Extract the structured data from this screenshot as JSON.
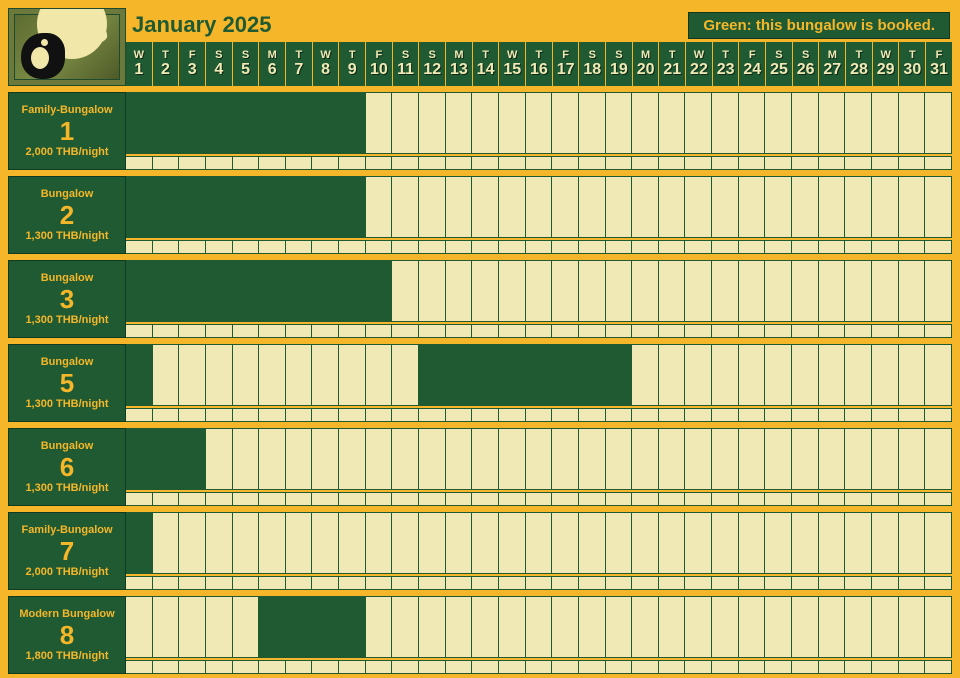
{
  "colors": {
    "page_bg": "#f5b729",
    "dark_green": "#1f5a33",
    "cell_cream": "#f1e9b5",
    "label_text": "#f5b729",
    "title_text": "#1f5a33",
    "border": "#1f5a33"
  },
  "header": {
    "title": "January 2025",
    "legend": "Green: this bungalow is booked."
  },
  "calendar": {
    "days": 31,
    "start_dow_index": 2,
    "dow_labels": [
      "M",
      "T",
      "W",
      "T",
      "F",
      "S",
      "S"
    ],
    "day_numbers": [
      1,
      2,
      3,
      4,
      5,
      6,
      7,
      8,
      9,
      10,
      11,
      12,
      13,
      14,
      15,
      16,
      17,
      18,
      19,
      20,
      21,
      22,
      23,
      24,
      25,
      26,
      27,
      28,
      29,
      30,
      31
    ]
  },
  "rows": [
    {
      "type": "Family-Bungalow",
      "number": "1",
      "price": "2,000 THB/night",
      "main_booked": [
        1,
        2,
        3,
        4,
        5,
        6,
        7,
        8,
        9
      ],
      "sub_booked": []
    },
    {
      "type": "Bungalow",
      "number": "2",
      "price": "1,300 THB/night",
      "main_booked": [
        1,
        2,
        3,
        4,
        5,
        6,
        7,
        8,
        9
      ],
      "sub_booked": []
    },
    {
      "type": "Bungalow",
      "number": "3",
      "price": "1,300 THB/night",
      "main_booked": [
        1,
        2,
        3,
        4,
        5,
        6,
        7,
        8,
        9,
        10
      ],
      "sub_booked": []
    },
    {
      "type": "Bungalow",
      "number": "5",
      "price": "1,300 THB/night",
      "main_booked": [
        1,
        12,
        13,
        14,
        15,
        16,
        17,
        18,
        19
      ],
      "sub_booked": []
    },
    {
      "type": "Bungalow",
      "number": "6",
      "price": "1,300 THB/night",
      "main_booked": [
        1,
        2,
        3
      ],
      "sub_booked": []
    },
    {
      "type": "Family-Bungalow",
      "number": "7",
      "price": "2,000 THB/night",
      "main_booked": [
        1
      ],
      "sub_booked": []
    },
    {
      "type": "Modern Bungalow",
      "number": "8",
      "price": "1,800 THB/night",
      "main_booked": [
        6,
        7,
        8,
        9
      ],
      "sub_booked": []
    }
  ]
}
